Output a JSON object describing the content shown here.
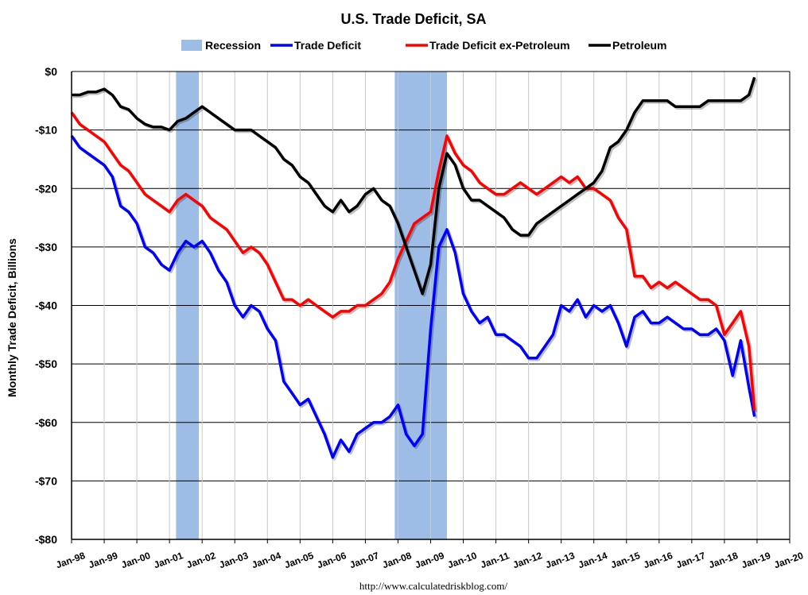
{
  "chart_data": {
    "type": "line",
    "title": "U.S. Trade Deficit, SA",
    "ylabel": "Monthly Trade Deficit, Billions",
    "xlabel": "",
    "source": "http://www.calculatedriskblog.com/",
    "ylim": [
      -80,
      0
    ],
    "xlim": [
      1998.0,
      2020.0
    ],
    "y_ticks": [
      0,
      -10,
      -20,
      -30,
      -40,
      -50,
      -60,
      -70,
      -80
    ],
    "y_tick_labels": [
      "$0",
      "-$10",
      "-$20",
      "-$30",
      "-$40",
      "-$50",
      "-$60",
      "-$70",
      "-$80"
    ],
    "x_ticks": [
      1998,
      1999,
      2000,
      2001,
      2002,
      2003,
      2004,
      2005,
      2006,
      2007,
      2008,
      2009,
      2010,
      2011,
      2012,
      2013,
      2014,
      2015,
      2016,
      2017,
      2018,
      2019,
      2020
    ],
    "x_tick_labels": [
      "Jan-98",
      "Jan-99",
      "Jan-00",
      "Jan-01",
      "Jan-02",
      "Jan-03",
      "Jan-04",
      "Jan-05",
      "Jan-06",
      "Jan-07",
      "Jan-08",
      "Jan-09",
      "Jan-10",
      "Jan-11",
      "Jan-12",
      "Jan-13",
      "Jan-14",
      "Jan-15",
      "Jan-16",
      "Jan-17",
      "Jan-18",
      "Jan-19",
      "Jan-20"
    ],
    "grid": "horizontal",
    "legend": "top-center",
    "recessions": [
      {
        "start": 2001.2,
        "end": 2001.9
      },
      {
        "start": 2007.9,
        "end": 2009.5
      }
    ],
    "legend_items": [
      {
        "label": "Recession",
        "type": "patch",
        "color": "#9dbde6"
      },
      {
        "label": "Trade Deficit",
        "type": "line",
        "color": "#0000ff"
      },
      {
        "label": "Trade Deficit ex-Petroleum",
        "type": "line",
        "color": "#ff0000"
      },
      {
        "label": "Petroleum",
        "type": "line",
        "color": "#000000"
      }
    ],
    "series": [
      {
        "name": "Trade Deficit",
        "color": "#0000ff",
        "x": [
          1998.0,
          1998.25,
          1998.5,
          1998.75,
          1999.0,
          1999.25,
          1999.5,
          1999.75,
          2000.0,
          2000.25,
          2000.5,
          2000.75,
          2001.0,
          2001.25,
          2001.5,
          2001.75,
          2002.0,
          2002.25,
          2002.5,
          2002.75,
          2003.0,
          2003.25,
          2003.5,
          2003.75,
          2004.0,
          2004.25,
          2004.5,
          2004.75,
          2005.0,
          2005.25,
          2005.5,
          2005.75,
          2006.0,
          2006.25,
          2006.5,
          2006.75,
          2007.0,
          2007.25,
          2007.5,
          2007.75,
          2008.0,
          2008.25,
          2008.5,
          2008.75,
          2009.0,
          2009.25,
          2009.5,
          2009.75,
          2010.0,
          2010.25,
          2010.5,
          2010.75,
          2011.0,
          2011.25,
          2011.5,
          2011.75,
          2012.0,
          2012.25,
          2012.5,
          2012.75,
          2013.0,
          2013.25,
          2013.5,
          2013.75,
          2014.0,
          2014.25,
          2014.5,
          2014.75,
          2015.0,
          2015.25,
          2015.5,
          2015.75,
          2016.0,
          2016.25,
          2016.5,
          2016.75,
          2017.0,
          2017.25,
          2017.5,
          2017.75,
          2018.0,
          2018.25,
          2018.5,
          2018.75,
          2018.92
        ],
        "y": [
          -11,
          -13,
          -14,
          -15,
          -16,
          -18,
          -23,
          -24,
          -26,
          -30,
          -31,
          -33,
          -34,
          -31,
          -29,
          -30,
          -29,
          -31,
          -34,
          -36,
          -40,
          -42,
          -40,
          -41,
          -44,
          -46,
          -53,
          -55,
          -57,
          -56,
          -59,
          -62,
          -66,
          -63,
          -65,
          -62,
          -61,
          -60,
          -60,
          -59,
          -57,
          -62,
          -64,
          -62,
          -44,
          -30,
          -27,
          -31,
          -38,
          -41,
          -43,
          -42,
          -45,
          -45,
          -46,
          -47,
          -49,
          -49,
          -47,
          -45,
          -40,
          -41,
          -39,
          -42,
          -40,
          -41,
          -40,
          -43,
          -47,
          -42,
          -41,
          -43,
          -43,
          -42,
          -43,
          -44,
          -44,
          -45,
          -45,
          -44,
          -46,
          -52,
          -46,
          -54,
          -59
        ]
      },
      {
        "name": "Trade Deficit ex-Petroleum",
        "color": "#ff0000",
        "x": [
          1998.0,
          1998.25,
          1998.5,
          1998.75,
          1999.0,
          1999.25,
          1999.5,
          1999.75,
          2000.0,
          2000.25,
          2000.5,
          2000.75,
          2001.0,
          2001.25,
          2001.5,
          2001.75,
          2002.0,
          2002.25,
          2002.5,
          2002.75,
          2003.0,
          2003.25,
          2003.5,
          2003.75,
          2004.0,
          2004.25,
          2004.5,
          2004.75,
          2005.0,
          2005.25,
          2005.5,
          2005.75,
          2006.0,
          2006.25,
          2006.5,
          2006.75,
          2007.0,
          2007.25,
          2007.5,
          2007.75,
          2008.0,
          2008.25,
          2008.5,
          2008.75,
          2009.0,
          2009.25,
          2009.5,
          2009.75,
          2010.0,
          2010.25,
          2010.5,
          2010.75,
          2011.0,
          2011.25,
          2011.5,
          2011.75,
          2012.0,
          2012.25,
          2012.5,
          2012.75,
          2013.0,
          2013.25,
          2013.5,
          2013.75,
          2014.0,
          2014.25,
          2014.5,
          2014.75,
          2015.0,
          2015.25,
          2015.5,
          2015.75,
          2016.0,
          2016.25,
          2016.5,
          2016.75,
          2017.0,
          2017.25,
          2017.5,
          2017.75,
          2018.0,
          2018.25,
          2018.5,
          2018.75,
          2018.92
        ],
        "y": [
          -7,
          -9,
          -10,
          -11,
          -12,
          -14,
          -16,
          -17,
          -19,
          -21,
          -22,
          -23,
          -24,
          -22,
          -21,
          -22,
          -23,
          -25,
          -26,
          -27,
          -29,
          -31,
          -30,
          -31,
          -33,
          -36,
          -39,
          -39,
          -40,
          -39,
          -40,
          -41,
          -42,
          -41,
          -41,
          -40,
          -40,
          -39,
          -38,
          -36,
          -32,
          -29,
          -26,
          -25,
          -24,
          -17,
          -11,
          -14,
          -16,
          -17,
          -19,
          -20,
          -21,
          -21,
          -20,
          -19,
          -20,
          -21,
          -20,
          -19,
          -18,
          -19,
          -18,
          -20,
          -20,
          -21,
          -22,
          -25,
          -27,
          -35,
          -35,
          -37,
          -36,
          -37,
          -36,
          -37,
          -38,
          -39,
          -39,
          -40,
          -45,
          -43,
          -41,
          -47,
          -58
        ]
      },
      {
        "name": "Petroleum",
        "color": "#000000",
        "x": [
          1998.0,
          1998.25,
          1998.5,
          1998.75,
          1999.0,
          1999.25,
          1999.5,
          1999.75,
          2000.0,
          2000.25,
          2000.5,
          2000.75,
          2001.0,
          2001.25,
          2001.5,
          2001.75,
          2002.0,
          2002.25,
          2002.5,
          2002.75,
          2003.0,
          2003.25,
          2003.5,
          2003.75,
          2004.0,
          2004.25,
          2004.5,
          2004.75,
          2005.0,
          2005.25,
          2005.5,
          2005.75,
          2006.0,
          2006.25,
          2006.5,
          2006.75,
          2007.0,
          2007.25,
          2007.5,
          2007.75,
          2008.0,
          2008.25,
          2008.5,
          2008.75,
          2009.0,
          2009.25,
          2009.5,
          2009.75,
          2010.0,
          2010.25,
          2010.5,
          2010.75,
          2011.0,
          2011.25,
          2011.5,
          2011.75,
          2012.0,
          2012.25,
          2012.5,
          2012.75,
          2013.0,
          2013.25,
          2013.5,
          2013.75,
          2014.0,
          2014.25,
          2014.5,
          2014.75,
          2015.0,
          2015.25,
          2015.5,
          2015.75,
          2016.0,
          2016.25,
          2016.5,
          2016.75,
          2017.0,
          2017.25,
          2017.5,
          2017.75,
          2018.0,
          2018.25,
          2018.5,
          2018.75,
          2018.92
        ],
        "y": [
          -4,
          -4,
          -3.5,
          -3.5,
          -3,
          -4,
          -6,
          -6.5,
          -8,
          -9,
          -9.5,
          -9.5,
          -10,
          -8.5,
          -8,
          -7,
          -6,
          -7,
          -8,
          -9,
          -10,
          -10,
          -10,
          -11,
          -12,
          -13,
          -15,
          -16,
          -18,
          -19,
          -21,
          -23,
          -24,
          -22,
          -24,
          -23,
          -21,
          -20,
          -22,
          -23,
          -26,
          -30,
          -34,
          -38,
          -33,
          -20,
          -14,
          -16,
          -20,
          -22,
          -22,
          -23,
          -24,
          -25,
          -27,
          -28,
          -28,
          -26,
          -25,
          -24,
          -23,
          -22,
          -21,
          -20,
          -19,
          -17,
          -13,
          -12,
          -10,
          -7,
          -5,
          -5,
          -5,
          -5,
          -6,
          -6,
          -6,
          -6,
          -5,
          -5,
          -5,
          -5,
          -5,
          -4,
          -1
        ]
      }
    ]
  }
}
